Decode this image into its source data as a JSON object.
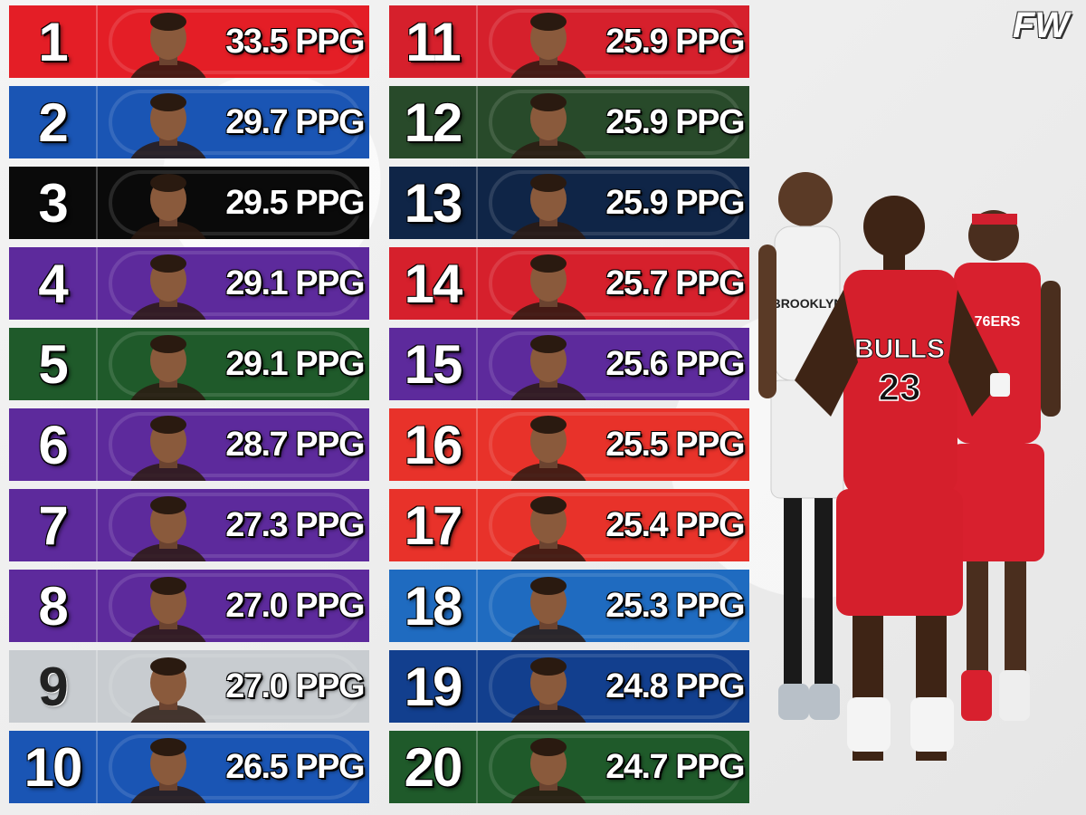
{
  "brand": {
    "logo_text": "FW"
  },
  "left_column": [
    {
      "rank": "1",
      "ppg": "33.5 PPG",
      "color": "#e41e26"
    },
    {
      "rank": "2",
      "ppg": "29.7 PPG",
      "color": "#1a55b4"
    },
    {
      "rank": "3",
      "ppg": "29.5 PPG",
      "color": "#0a0a0a"
    },
    {
      "rank": "4",
      "ppg": "29.1 PPG",
      "color": "#5d2a9c"
    },
    {
      "rank": "5",
      "ppg": "29.1 PPG",
      "color": "#1f5a2a"
    },
    {
      "rank": "6",
      "ppg": "28.7 PPG",
      "color": "#5d2a9c"
    },
    {
      "rank": "7",
      "ppg": "27.3 PPG",
      "color": "#5d2a9c"
    },
    {
      "rank": "8",
      "ppg": "27.0 PPG",
      "color": "#5d2a9c"
    },
    {
      "rank": "9",
      "ppg": "27.0 PPG",
      "color": "#c8ccd0"
    },
    {
      "rank": "10",
      "ppg": "26.5 PPG",
      "color": "#1a55b4"
    }
  ],
  "right_column": [
    {
      "rank": "11",
      "ppg": "25.9 PPG",
      "color": "#d6202c"
    },
    {
      "rank": "12",
      "ppg": "25.9 PPG",
      "color": "#284a2a"
    },
    {
      "rank": "13",
      "ppg": "25.9 PPG",
      "color": "#0f2547"
    },
    {
      "rank": "14",
      "ppg": "25.7 PPG",
      "color": "#d6202c"
    },
    {
      "rank": "15",
      "ppg": "25.6 PPG",
      "color": "#5d2a9c"
    },
    {
      "rank": "16",
      "ppg": "25.5 PPG",
      "color": "#e8322a"
    },
    {
      "rank": "17",
      "ppg": "25.4 PPG",
      "color": "#e8322a"
    },
    {
      "rank": "18",
      "ppg": "25.3 PPG",
      "color": "#1f6bc0"
    },
    {
      "rank": "19",
      "ppg": "24.8 PPG",
      "color": "#123f8e"
    },
    {
      "rank": "20",
      "ppg": "24.7 PPG",
      "color": "#1f5a2a"
    }
  ],
  "hero_jerseys": {
    "back_left": "BROOKLYN",
    "center_team": "BULLS",
    "center_number": "23",
    "back_right": "76ERS"
  }
}
